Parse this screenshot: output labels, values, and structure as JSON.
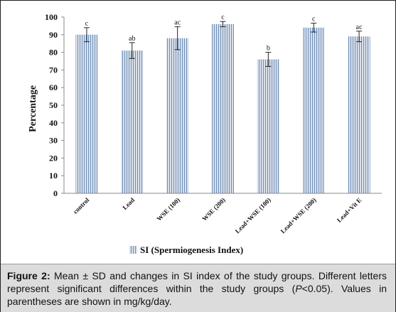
{
  "chart_data": {
    "type": "bar",
    "categories": [
      "control",
      "Lead",
      "WSE (100)",
      "WSE (200)",
      "Lead+WSE (100)",
      "Lead+WSE (200)",
      "Lead+Vit E"
    ],
    "series": [
      {
        "name": "SI (Spermiogenesis Index)",
        "values": [
          90,
          81,
          88,
          96,
          76,
          94,
          89
        ],
        "error": [
          4,
          4.5,
          6.5,
          1.5,
          4,
          2.5,
          3
        ],
        "significance": [
          "c",
          "ab",
          "ac",
          "c",
          "b",
          "c",
          "ac"
        ]
      }
    ],
    "title": "",
    "xlabel": "",
    "ylabel": "Percentage",
    "ylim": [
      0,
      100
    ],
    "yticks": [
      0,
      10,
      20,
      30,
      40,
      50,
      60,
      70,
      80,
      90,
      100
    ],
    "grid": false,
    "legend_position": "bottom"
  },
  "caption": {
    "label": "Figure 2:",
    "text": " Mean ± SD and changes in SI index of the study groups. Different letters represent significant differences within the study groups (",
    "italic": "P",
    "text_end": "<0.05). Values in parentheses are shown in mg/kg/day."
  },
  "colors": {
    "bar_fill": "#dbe1ea",
    "bar_hatch": "#6e8fb8",
    "axis": "#888888",
    "error_bar": "#222222",
    "caption_background": "#dcdcdc"
  }
}
